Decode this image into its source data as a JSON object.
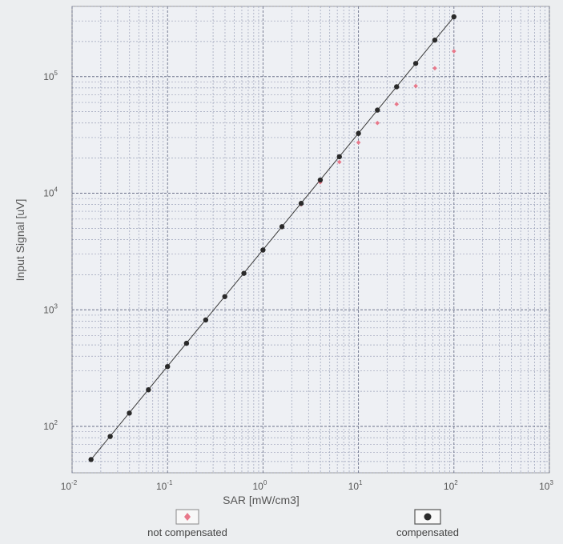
{
  "chart_data": {
    "type": "scatter",
    "xlabel": "SAR [mW/cm3]",
    "ylabel": "Input Signal [uV]",
    "xscale": "log",
    "yscale": "log",
    "xlim": [
      0.01,
      1000
    ],
    "ylim": [
      40,
      400000
    ],
    "grid": true,
    "x_ticks": [
      {
        "base": "10",
        "exp": "-2"
      },
      {
        "base": "10",
        "exp": "-1"
      },
      {
        "base": "10",
        "exp": "0"
      },
      {
        "base": "10",
        "exp": "1"
      },
      {
        "base": "10",
        "exp": "2"
      },
      {
        "base": "10",
        "exp": "3"
      }
    ],
    "y_ticks": [
      {
        "base": "10",
        "exp": "2"
      },
      {
        "base": "10",
        "exp": "3"
      },
      {
        "base": "10",
        "exp": "4"
      },
      {
        "base": "10",
        "exp": "5"
      }
    ],
    "series": [
      {
        "name": "compensated",
        "marker": "circle",
        "color": "#2a2a2a",
        "x": [
          0.0158,
          0.0251,
          0.0398,
          0.0631,
          0.1,
          0.158,
          0.251,
          0.398,
          0.631,
          1.0,
          1.58,
          2.51,
          3.98,
          6.31,
          10,
          15.8,
          25.1,
          39.8,
          63.1,
          100
        ],
        "y": [
          52,
          82,
          130,
          206,
          326,
          516,
          818,
          1297,
          2055,
          3257,
          5162,
          8181,
          12970,
          20550,
          32570,
          51620,
          81800,
          129700,
          205500,
          325700
        ]
      },
      {
        "name": "not compensated",
        "marker": "diamond",
        "color": "#e8788a",
        "x": [
          0.0158,
          0.0251,
          0.0398,
          0.0631,
          0.1,
          0.158,
          0.251,
          0.398,
          0.631,
          1.0,
          1.58,
          2.51,
          3.98,
          6.31,
          10,
          15.8,
          25.1,
          39.8,
          63.1,
          100
        ],
        "y": [
          52,
          82,
          130,
          206,
          326,
          516,
          818,
          1290,
          2040,
          3230,
          5100,
          8000,
          12400,
          18500,
          27200,
          40000,
          58000,
          83000,
          118000,
          165000
        ]
      }
    ],
    "legend": {
      "placement": "bottom",
      "items": [
        {
          "label": "not compensated",
          "marker": "diamond",
          "color": "#e8788a"
        },
        {
          "label": "compensated",
          "marker": "circle",
          "color": "#2a2a2a"
        }
      ]
    }
  }
}
